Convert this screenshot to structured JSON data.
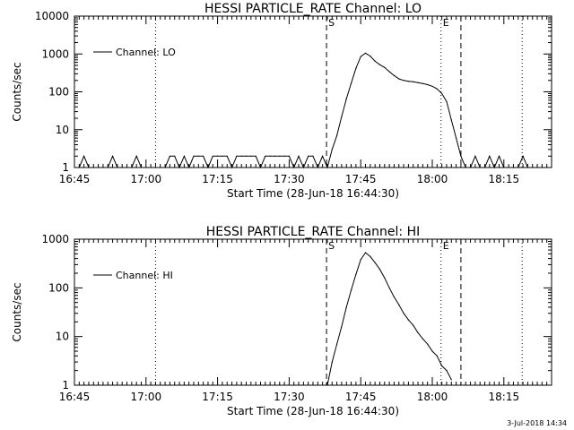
{
  "footer": {
    "date_stamp": "3-Jul-2018 14:34"
  },
  "chart_data": [
    {
      "type": "line",
      "title": "HESSI PARTICLE_RATE Channel: LO",
      "xlabel": "Start Time (28-Jun-18 16:44:30)",
      "ylabel": "Counts/sec",
      "y_scale": "log",
      "xlim": [
        "16:45",
        "18:25"
      ],
      "ylim": [
        1,
        10000
      ],
      "x_tick_labels": [
        "16:45",
        "17:00",
        "17:15",
        "17:30",
        "17:45",
        "18:00",
        "18:15"
      ],
      "y_tick_labels": [
        "1",
        "10",
        "100",
        "1000",
        "10000"
      ],
      "legend": {
        "placement": "top-left",
        "label": "Channel: LO"
      },
      "event_markers": [
        {
          "time": "17:37:50",
          "style": "dashed",
          "label": "S"
        },
        {
          "time": "18:06:00",
          "style": "dashed",
          "label": ""
        },
        {
          "time": "17:02:00",
          "style": "dotted",
          "label": ""
        },
        {
          "time": "18:01:50",
          "style": "dotted",
          "label": "E"
        },
        {
          "time": "18:18:50",
          "style": "dotted",
          "label": ""
        }
      ],
      "series": [
        {
          "x": [
            "16:46",
            "16:47",
            "16:48",
            "16:49",
            "16:50",
            "16:51",
            "16:52",
            "16:53",
            "16:54",
            "16:55",
            "16:56",
            "16:57",
            "16:58",
            "16:59",
            "17:00",
            "17:01",
            "17:02",
            "17:03",
            "17:04",
            "17:05",
            "17:06",
            "17:07",
            "17:08",
            "17:09",
            "17:10",
            "17:11",
            "17:12",
            "17:13",
            "17:14",
            "17:15",
            "17:16",
            "17:17",
            "17:18",
            "17:19",
            "17:20",
            "17:21",
            "17:22",
            "17:23",
            "17:24",
            "17:25",
            "17:26",
            "17:27",
            "17:28",
            "17:29",
            "17:30",
            "17:31",
            "17:32",
            "17:33",
            "17:34",
            "17:35",
            "17:36",
            "17:37",
            "17:38",
            "17:39",
            "17:40",
            "17:41",
            "17:42",
            "17:43",
            "17:44",
            "17:45",
            "17:46",
            "17:47",
            "17:48",
            "17:49",
            "17:50",
            "17:51",
            "17:52",
            "17:53",
            "17:54",
            "17:55",
            "17:56",
            "17:57",
            "17:58",
            "17:59",
            "18:00",
            "18:01",
            "18:02",
            "18:03",
            "18:04",
            "18:05",
            "18:06",
            "18:07",
            "18:08",
            "18:09",
            "18:10",
            "18:11",
            "18:12",
            "18:13",
            "18:14",
            "18:15",
            "18:16",
            "18:17",
            "18:18",
            "18:19",
            "18:20",
            "18:21",
            "18:22",
            "18:23"
          ],
          "y": [
            1,
            2,
            1,
            1,
            1,
            1,
            1,
            2,
            1,
            1,
            1,
            1,
            2,
            1,
            1,
            1,
            1,
            1,
            1,
            2,
            2,
            1,
            2,
            1,
            2,
            2,
            2,
            1,
            2,
            2,
            2,
            2,
            1,
            2,
            2,
            2,
            2,
            2,
            1,
            2,
            2,
            2,
            2,
            2,
            2,
            1,
            2,
            1,
            2,
            2,
            1,
            2,
            1,
            3,
            7,
            22,
            65,
            170,
            420,
            850,
            1050,
            880,
            640,
            520,
            440,
            340,
            270,
            220,
            200,
            190,
            185,
            175,
            165,
            155,
            140,
            120,
            90,
            55,
            18,
            6,
            2,
            1,
            1,
            2,
            1,
            1,
            2,
            1,
            2,
            1,
            1,
            1,
            1,
            2,
            1,
            1,
            1,
            1
          ]
        }
      ]
    },
    {
      "type": "line",
      "title": "HESSI PARTICLE_RATE Channel: HI",
      "xlabel": "Start Time (28-Jun-18 16:44:30)",
      "ylabel": "Counts/sec",
      "y_scale": "log",
      "xlim": [
        "16:45",
        "18:25"
      ],
      "ylim": [
        1,
        1000
      ],
      "x_tick_labels": [
        "16:45",
        "17:00",
        "17:15",
        "17:30",
        "17:45",
        "18:00",
        "18:15"
      ],
      "y_tick_labels": [
        "1",
        "10",
        "100",
        "1000"
      ],
      "legend": {
        "placement": "top-left",
        "label": "Channel: HI"
      },
      "event_markers": [
        {
          "time": "17:37:50",
          "style": "dashed",
          "label": "S"
        },
        {
          "time": "18:06:00",
          "style": "dashed",
          "label": ""
        },
        {
          "time": "17:02:00",
          "style": "dotted",
          "label": ""
        },
        {
          "time": "18:01:50",
          "style": "dotted",
          "label": "E"
        },
        {
          "time": "18:18:50",
          "style": "dotted",
          "label": ""
        }
      ],
      "series": [
        {
          "x": [
            "17:38",
            "17:39",
            "17:40",
            "17:41",
            "17:42",
            "17:43",
            "17:44",
            "17:45",
            "17:46",
            "17:47",
            "17:48",
            "17:49",
            "17:50",
            "17:51",
            "17:52",
            "17:53",
            "17:54",
            "17:55",
            "17:56",
            "17:57",
            "17:58",
            "17:59",
            "18:00",
            "18:01",
            "18:02",
            "18:03",
            "18:04"
          ],
          "y": [
            1,
            3,
            7,
            16,
            40,
            90,
            190,
            380,
            530,
            440,
            330,
            240,
            160,
            100,
            65,
            45,
            30,
            22,
            17,
            12,
            9,
            7,
            5,
            4,
            2.5,
            2,
            1.3
          ]
        }
      ]
    }
  ]
}
